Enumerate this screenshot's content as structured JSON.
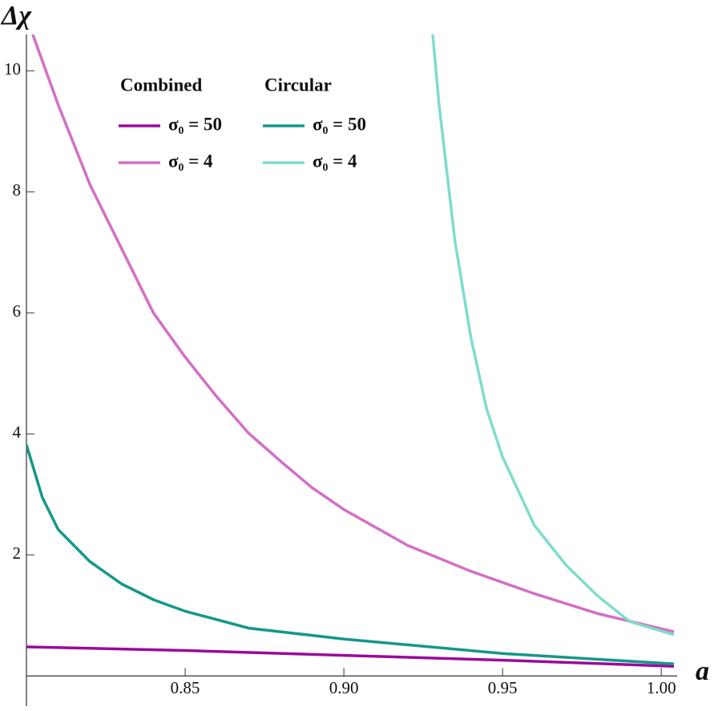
{
  "chart_data": {
    "type": "line",
    "y_label": "Δχ",
    "x_label": "a",
    "xlim": [
      0.8,
      1.005
    ],
    "ylim": [
      -0.5,
      10.6
    ],
    "xticks": [
      0.85,
      {
        "value": 0.9,
        "label": "0.90"
      },
      0.95,
      {
        "value": 1.0,
        "label": "1.00"
      }
    ],
    "yticks": [
      2,
      4,
      6,
      8,
      10
    ],
    "series_groups": [
      {
        "name": "Combined",
        "series": [
          {
            "name": "σ₀ = 50",
            "color": "#9b0a9b",
            "x": [
              0.8,
              0.85,
              0.9,
              0.95,
              1.004
            ],
            "values": [
              0.48,
              0.42,
              0.34,
              0.26,
              0.16
            ]
          },
          {
            "name": "σ₀ = 4",
            "color": "#d36fc6",
            "x": [
              0.802,
              0.81,
              0.82,
              0.83,
              0.84,
              0.85,
              0.86,
              0.87,
              0.88,
              0.89,
              0.9,
              0.92,
              0.94,
              0.96,
              0.98,
              1.004
            ],
            "values": [
              10.6,
              9.44,
              8.12,
              7.06,
              6.0,
              5.27,
              4.61,
              4.01,
              3.55,
              3.11,
              2.75,
              2.16,
              1.73,
              1.36,
              1.03,
              0.73
            ]
          }
        ]
      },
      {
        "name": "Circular",
        "series": [
          {
            "name": "σ₀ = 50",
            "color": "#16978a",
            "x": [
              0.8,
              0.805,
              0.81,
              0.82,
              0.83,
              0.84,
              0.85,
              0.87,
              0.9,
              0.95,
              1.004
            ],
            "values": [
              3.82,
              2.95,
              2.42,
              1.89,
              1.52,
              1.26,
              1.07,
              0.79,
              0.61,
              0.37,
              0.2
            ]
          },
          {
            "name": "σ₀ = 4",
            "color": "#7fdccb",
            "x": [
              0.928,
              0.93,
              0.935,
              0.94,
              0.945,
              0.95,
              0.96,
              0.97,
              0.98,
              0.99,
              1.004
            ],
            "values": [
              10.6,
              9.44,
              7.19,
              5.6,
              4.41,
              3.62,
              2.49,
              1.83,
              1.32,
              0.9,
              0.68
            ]
          }
        ]
      }
    ]
  }
}
